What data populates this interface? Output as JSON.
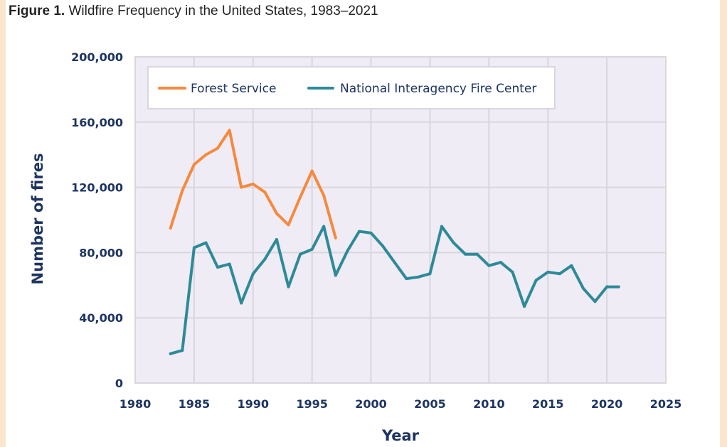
{
  "figure": {
    "label": "Figure 1.",
    "title": "Wildfire Frequency in the United States, 1983–2021"
  },
  "colors": {
    "forest_service": "#f58a3e",
    "nifc": "#2e8a98",
    "plot_bg": "#efecf6",
    "grid": "#d9d6de",
    "text": "#1d3461",
    "page_accent": "#fce5cf"
  },
  "chart_data": {
    "type": "line",
    "title": "Wildfire Frequency in the United States, 1983–2021",
    "xlabel": "Year",
    "ylabel": "Number of fires",
    "xlim": [
      1980,
      2025
    ],
    "ylim": [
      0,
      200000
    ],
    "xticks": [
      1980,
      1985,
      1990,
      1995,
      2000,
      2005,
      2010,
      2015,
      2020,
      2025
    ],
    "yticks": [
      0,
      40000,
      80000,
      120000,
      160000,
      200000
    ],
    "ytick_labels": [
      "0",
      "40,000",
      "80,000",
      "120,000",
      "160,000",
      "200,000"
    ],
    "grid": true,
    "legend_position": "top",
    "series": [
      {
        "name": "Forest Service",
        "color": "#f58a3e",
        "x": [
          1983,
          1984,
          1985,
          1986,
          1987,
          1988,
          1989,
          1990,
          1991,
          1992,
          1993,
          1994,
          1995,
          1996,
          1997
        ],
        "values": [
          95000,
          118000,
          134000,
          140000,
          144000,
          155000,
          120000,
          122000,
          117000,
          104000,
          97000,
          114000,
          130000,
          115000,
          89000
        ]
      },
      {
        "name": "National Interagency Fire Center",
        "color": "#2e8a98",
        "x": [
          1983,
          1984,
          1985,
          1986,
          1987,
          1988,
          1989,
          1990,
          1991,
          1992,
          1993,
          1994,
          1995,
          1996,
          1997,
          1998,
          1999,
          2000,
          2001,
          2002,
          2003,
          2004,
          2005,
          2006,
          2007,
          2008,
          2009,
          2010,
          2011,
          2012,
          2013,
          2014,
          2015,
          2016,
          2017,
          2018,
          2019,
          2020,
          2021
        ],
        "values": [
          18000,
          20000,
          83000,
          86000,
          71000,
          73000,
          49000,
          67000,
          76000,
          88000,
          59000,
          79000,
          82000,
          96000,
          66000,
          81000,
          93000,
          92000,
          84000,
          74000,
          64000,
          65000,
          67000,
          96000,
          86000,
          79000,
          79000,
          72000,
          74000,
          68000,
          47000,
          63000,
          68000,
          67000,
          72000,
          58000,
          50000,
          59000,
          59000
        ]
      }
    ]
  }
}
